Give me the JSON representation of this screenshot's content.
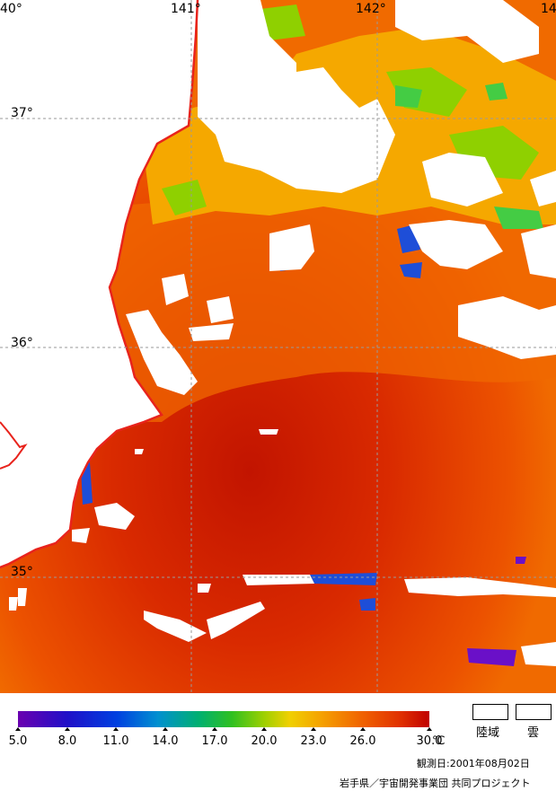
{
  "map": {
    "longitude_labels": [
      "40°",
      "141°",
      "142°",
      "14"
    ],
    "latitude_labels": [
      "37°",
      "36°",
      "35°"
    ],
    "colors": {
      "land": "#ffffff",
      "cloud": "#ffffff",
      "coastline": "#e8231c",
      "grid": "#9a9a9a",
      "sst_warm": "#c51a00",
      "sst_mid": "#ef5a00",
      "sst_cool": "#f59a00",
      "sst_yellow": "#e8d000",
      "sst_green": "#66cc33",
      "sst_blue": "#1050d0",
      "sst_purple": "#6a10c8"
    }
  },
  "legend": {
    "scale_values": [
      "5.0",
      "8.0",
      "11.0",
      "14.0",
      "17.0",
      "20.0",
      "23.0",
      "26.0",
      "30.0"
    ],
    "unit": "℃",
    "land_label": "陸域",
    "cloud_label": "雲",
    "colors": [
      "#6a00b0",
      "#2010c8",
      "#0040e0",
      "#0090d0",
      "#00b070",
      "#30c020",
      "#a0d000",
      "#f0d000",
      "#f5a000",
      "#f06000",
      "#e03000",
      "#c00000"
    ]
  },
  "observation_date": "観測日:2001年08月02日",
  "credit": "岩手県／宇宙開発事業団 共同プロジェクト"
}
